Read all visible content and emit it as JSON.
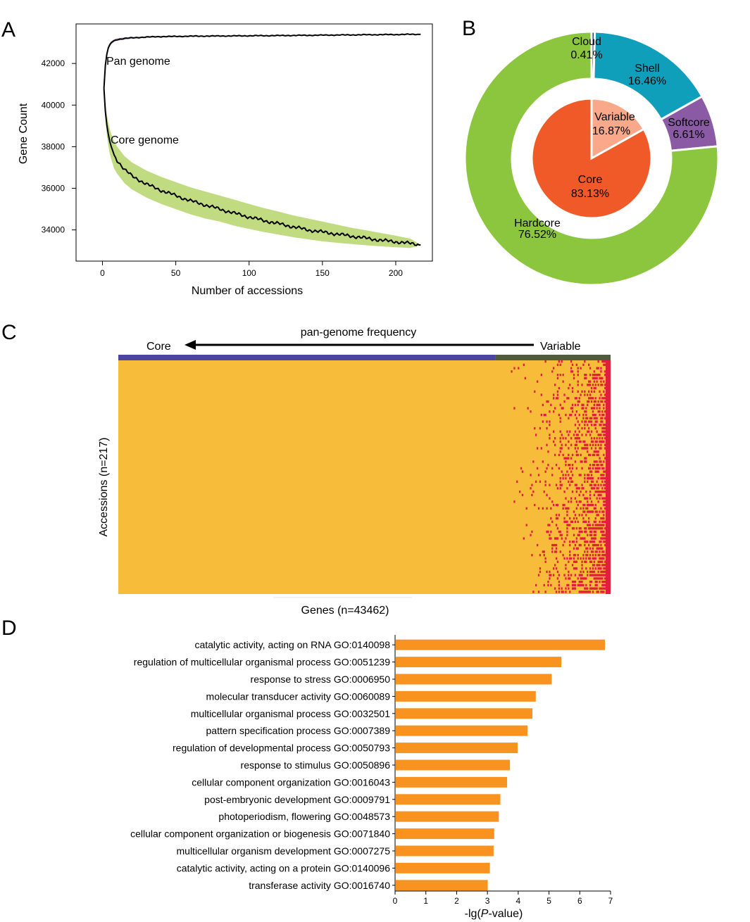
{
  "panels": {
    "a": "A",
    "b": "B",
    "c": "C",
    "d": "D"
  },
  "colors": {
    "core_band": "#b5d56a",
    "pan_band": "#b58fd0",
    "curve": "#000000",
    "hardcore": "#8cc63f",
    "shell": "#0f9fba",
    "softcore": "#8b5aa5",
    "cloud": "#1d3a6e",
    "core_pie": "#f05a28",
    "variable_pie": "#f9a98a",
    "heat_present": "#f6bc3a",
    "heat_absent": "#e0203a",
    "strip_core": "#4b44a0",
    "strip_variable": "#4f5b3a",
    "bar": "#f7931e"
  },
  "chart_data": [
    {
      "panel": "A",
      "type": "line",
      "xlabel": "Number of accessions",
      "ylabel": "Gene Count",
      "xlim": [
        -18,
        225
      ],
      "ylim": [
        32500,
        43900
      ],
      "xticks": [
        0,
        50,
        100,
        150,
        200
      ],
      "yticks": [
        34000,
        36000,
        38000,
        40000,
        42000
      ],
      "grid": false,
      "series": [
        {
          "name": "Pan genome",
          "x": [
            1,
            2,
            3,
            4,
            5,
            6,
            8,
            10,
            15,
            20,
            30,
            40,
            50,
            60,
            80,
            100,
            120,
            150,
            180,
            200,
            210,
            217
          ],
          "y": [
            40800,
            41900,
            42450,
            42750,
            42900,
            43000,
            43100,
            43150,
            43200,
            43230,
            43270,
            43290,
            43300,
            43310,
            43320,
            43330,
            43340,
            43360,
            43380,
            43390,
            43400,
            43400
          ],
          "band_low": [
            40750,
            41800,
            42350,
            42650,
            42800,
            42920,
            43030,
            43090,
            43150,
            43190,
            43230,
            43260,
            43270,
            43290,
            43300,
            43315,
            43330,
            43350,
            43375,
            43385,
            43395,
            43400
          ],
          "band_high": [
            40850,
            42000,
            42550,
            42850,
            42980,
            43070,
            43160,
            43210,
            43250,
            43270,
            43300,
            43320,
            43330,
            43335,
            43340,
            43345,
            43350,
            43370,
            43385,
            43395,
            43405,
            43400
          ]
        },
        {
          "name": "Core genome",
          "x": [
            1,
            2,
            3,
            4,
            5,
            6,
            8,
            10,
            15,
            20,
            30,
            40,
            50,
            60,
            70,
            80,
            90,
            100,
            110,
            120,
            130,
            140,
            150,
            160,
            170,
            180,
            190,
            200,
            210,
            217
          ],
          "y": [
            40800,
            39700,
            39050,
            38600,
            38250,
            38000,
            37600,
            37350,
            36900,
            36600,
            36200,
            35900,
            35650,
            35400,
            35200,
            35000,
            34800,
            34620,
            34450,
            34300,
            34150,
            34000,
            33900,
            33800,
            33700,
            33600,
            33500,
            33430,
            33350,
            33280
          ],
          "band_low": [
            40700,
            39300,
            38550,
            38050,
            37650,
            37400,
            36950,
            36700,
            36250,
            35950,
            35550,
            35250,
            35000,
            34750,
            34550,
            34400,
            34200,
            34050,
            33900,
            33780,
            33650,
            33550,
            33450,
            33380,
            33320,
            33260,
            33210,
            33170,
            33130,
            33280
          ],
          "band_high": [
            40900,
            40100,
            39550,
            39150,
            38850,
            38600,
            38250,
            38000,
            37550,
            37250,
            36850,
            36550,
            36300,
            36050,
            35850,
            35650,
            35450,
            35250,
            35050,
            34880,
            34700,
            34550,
            34400,
            34250,
            34100,
            33980,
            33850,
            33720,
            33580,
            33280
          ]
        }
      ],
      "annotations": [
        "Pan genome",
        "Core genome"
      ]
    },
    {
      "panel": "B",
      "type": "pie",
      "rings": [
        {
          "ring": "outer",
          "slices": [
            {
              "label": "Cloud",
              "pct_text": "0.41%",
              "value": 0.41
            },
            {
              "label": "Shell",
              "pct_text": "16.46%",
              "value": 16.46
            },
            {
              "label": "Softcore",
              "pct_text": "6.61%",
              "value": 6.61
            },
            {
              "label": "Hardcore",
              "pct_text": "76.52%",
              "value": 76.52
            }
          ]
        },
        {
          "ring": "inner",
          "slices": [
            {
              "label": "Variable",
              "pct_text": "16.87%",
              "value": 16.87
            },
            {
              "label": "Core",
              "pct_text": "83.13%",
              "value": 83.13
            }
          ]
        }
      ]
    },
    {
      "panel": "C",
      "type": "heatmap",
      "title": "pan-genome frequency",
      "arrow_left_label": "Core",
      "arrow_right_label": "Variable",
      "xlabel": "Genes (n=43462)",
      "ylabel": "Accessions (n=217)",
      "core_fraction": 0.7662,
      "note": "presence/absence matrix; absences concentrated in the variable genes at the right"
    },
    {
      "panel": "D",
      "type": "bar",
      "orientation": "horizontal",
      "xlabel": "-lg(P-value)",
      "xlabel_prefix": "-lg(",
      "xlabel_italic": "P",
      "xlabel_suffix": "-value)",
      "xlim": [
        0,
        7
      ],
      "xticks": [
        0,
        1,
        2,
        3,
        4,
        5,
        6,
        7
      ],
      "categories": [
        "catalytic activity, acting on RNA GO:0140098",
        "regulation of multicellular organismal process GO:0051239",
        "response to stress GO:0006950",
        "molecular transducer activity GO:0060089",
        "multicellular organismal process GO:0032501",
        "pattern specification process GO:0007389",
        "regulation of developmental process GO:0050793",
        "response to stimulus GO:0050896",
        "cellular component organization GO:0016043",
        "post-embryonic development GO:0009791",
        "photoperiodism, flowering GO:0048573",
        "cellular component organization or biogenesis GO:0071840",
        "multicellular organism development GO:0007275",
        "catalytic activity, acting on a protein GO:0140096",
        "transferase activity GO:0016740"
      ],
      "values": [
        6.82,
        5.4,
        5.09,
        4.57,
        4.46,
        4.3,
        3.98,
        3.73,
        3.64,
        3.42,
        3.37,
        3.22,
        3.2,
        3.08,
        3.01
      ]
    }
  ]
}
